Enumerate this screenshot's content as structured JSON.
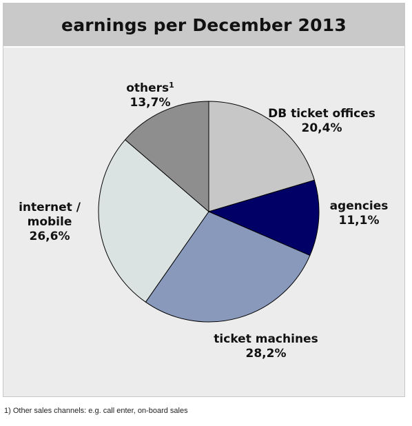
{
  "chart_data": {
    "type": "pie",
    "title": "earnings per December 2013",
    "start_angle_deg": 0,
    "direction": "clockwise",
    "slices": [
      {
        "label": "DB ticket offices",
        "value": 20.4,
        "display": "20,4%",
        "color": "#c7c7c7"
      },
      {
        "label": "agencies",
        "value": 11.1,
        "display": "11,1%",
        "color": "#000066"
      },
      {
        "label": "ticket machines",
        "value": 28.2,
        "display": "28,2%",
        "color": "#8899bb"
      },
      {
        "label_lines": [
          "internet /",
          "mobile"
        ],
        "label": "internet / mobile",
        "value": 26.6,
        "display": "26,6%",
        "color": "#dbe2e2"
      },
      {
        "label": "others",
        "label_sup": "1",
        "value": 13.7,
        "display": "13,7%",
        "color": "#8e8e8e"
      }
    ]
  },
  "footnote": "1) Other sales channels: e.g. call enter, on-board sales"
}
